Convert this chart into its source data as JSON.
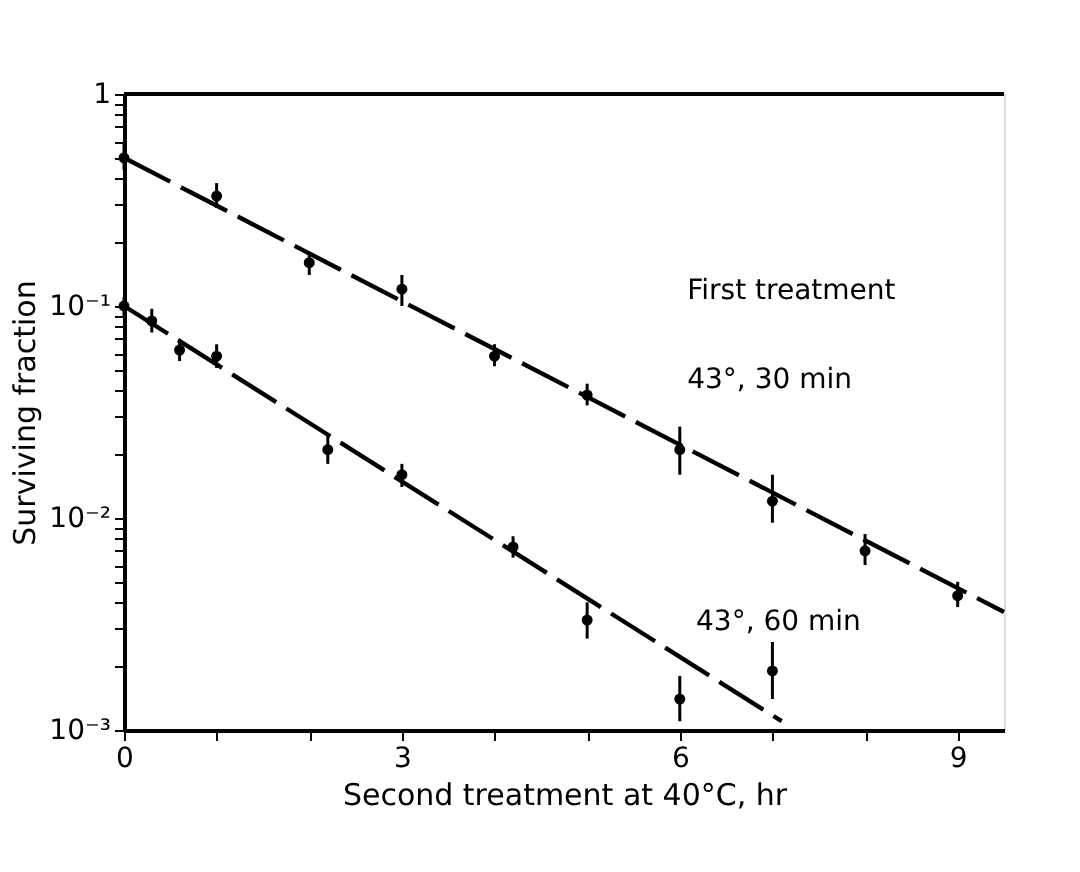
{
  "chart_data": {
    "type": "scatter",
    "xlabel": "Second treatment at 40°C, hr",
    "ylabel": "Surviving fraction",
    "log": "y",
    "grid": false,
    "xlim": [
      0,
      9.5
    ],
    "xticks": [
      0,
      {
        "value": 1,
        "label": null
      },
      {
        "value": 2,
        "label": null
      },
      3,
      {
        "value": 4,
        "label": null
      },
      {
        "value": 5,
        "label": null
      },
      6,
      {
        "value": 7,
        "label": null
      },
      {
        "value": 8,
        "label": null
      },
      9
    ],
    "ylim": [
      0.001,
      1
    ],
    "yticks": [
      {
        "value": 0.001,
        "label": "10⁻³"
      },
      {
        "value": 0.002,
        "label": null
      },
      {
        "value": 0.003,
        "label": null
      },
      {
        "value": 0.004,
        "label": null
      },
      {
        "value": 0.005,
        "label": null
      },
      {
        "value": 0.006,
        "label": null
      },
      {
        "value": 0.007,
        "label": null
      },
      {
        "value": 0.008,
        "label": null
      },
      {
        "value": 0.009,
        "label": null
      },
      {
        "value": 0.01,
        "label": "10⁻²"
      },
      {
        "value": 0.02,
        "label": null
      },
      {
        "value": 0.03,
        "label": null
      },
      {
        "value": 0.04,
        "label": null
      },
      {
        "value": 0.05,
        "label": null
      },
      {
        "value": 0.06,
        "label": null
      },
      {
        "value": 0.07,
        "label": null
      },
      {
        "value": 0.08,
        "label": null
      },
      {
        "value": 0.09,
        "label": null
      },
      {
        "value": 0.1,
        "label": "10⁻¹"
      },
      {
        "value": 0.2,
        "label": null
      },
      {
        "value": 0.3,
        "label": null
      },
      {
        "value": 0.4,
        "label": null
      },
      {
        "value": 0.5,
        "label": null
      },
      {
        "value": 0.6,
        "label": null
      },
      {
        "value": 0.7,
        "label": null
      },
      {
        "value": 0.8,
        "label": null
      },
      {
        "value": 0.9,
        "label": null
      },
      {
        "value": 1,
        "label": "1"
      }
    ],
    "annotations": [
      "First treatment",
      "43°, 30 min",
      "43°, 60 min"
    ],
    "series": [
      {
        "type": "scatter",
        "marker": "circle",
        "color": "#000000",
        "x": [
          0,
          1,
          2,
          3,
          4,
          5,
          6,
          7,
          8,
          9
        ],
        "values": [
          0.5,
          0.33,
          0.16,
          0.12,
          0.058,
          0.038,
          0.021,
          0.012,
          0.007,
          0.0043
        ],
        "errors": [
          [
            0.44,
            0.58
          ],
          [
            0.29,
            0.38
          ],
          [
            0.14,
            0.18
          ],
          [
            0.1,
            0.14
          ],
          [
            0.052,
            0.066
          ],
          [
            0.034,
            0.043
          ],
          [
            0.016,
            0.027
          ],
          [
            0.0095,
            0.016
          ],
          [
            0.006,
            0.0084
          ],
          [
            0.0038,
            0.005
          ]
        ]
      },
      {
        "type": "scatter",
        "marker": "circle",
        "color": "#000000",
        "x": [
          0,
          0.3,
          0.6,
          1,
          2.2,
          3,
          4.2,
          5,
          6,
          7
        ],
        "values": [
          0.1,
          0.085,
          0.062,
          0.058,
          0.021,
          0.016,
          0.0073,
          0.0033,
          0.0014,
          0.0019
        ],
        "errors": [
          [
            0.09,
            0.11
          ],
          [
            0.075,
            0.097
          ],
          [
            0.055,
            0.07
          ],
          [
            0.051,
            0.066
          ],
          [
            0.018,
            0.025
          ],
          [
            0.014,
            0.018
          ],
          [
            0.0065,
            0.0082
          ],
          [
            0.0027,
            0.004
          ],
          [
            0.0011,
            0.0018
          ],
          [
            0.0014,
            0.0026
          ]
        ]
      },
      {
        "type": "line",
        "color": "#000000",
        "line_style": "dashed",
        "x": [
          0,
          9.5
        ],
        "values": [
          0.5,
          0.0036
        ]
      },
      {
        "type": "line",
        "color": "#000000",
        "line_style": "dashed",
        "x": [
          0,
          7.1
        ],
        "values": [
          0.1,
          0.0011
        ]
      }
    ]
  }
}
